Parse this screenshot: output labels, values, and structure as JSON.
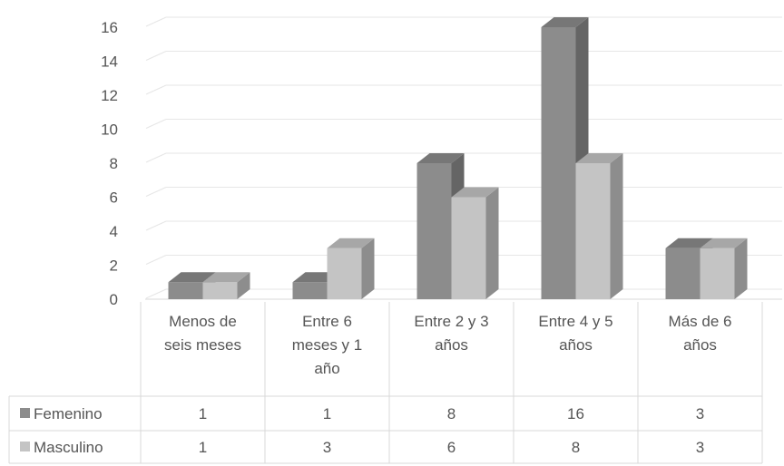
{
  "chart_data": {
    "type": "bar",
    "style": "3d-clustered-column with data table",
    "categories": [
      [
        "Menos de",
        "seis meses"
      ],
      [
        "Entre 6",
        "meses y 1",
        "año"
      ],
      [
        "Entre 2 y 3",
        "años"
      ],
      [
        "Entre 4 y 5",
        "años"
      ],
      [
        "Más de 6",
        "años"
      ]
    ],
    "series": [
      {
        "name": "Femenino",
        "values": [
          1,
          1,
          8,
          16,
          3
        ],
        "color": "#8c8c8c"
      },
      {
        "name": "Masculino",
        "values": [
          1,
          3,
          6,
          8,
          3
        ],
        "color": "#c4c4c4"
      }
    ],
    "ylim": [
      0,
      16
    ],
    "yticks": [
      "0",
      "2",
      "4",
      "6",
      "8",
      "10",
      "12",
      "14",
      "16"
    ],
    "grid": true,
    "legend": "data-table-left"
  }
}
